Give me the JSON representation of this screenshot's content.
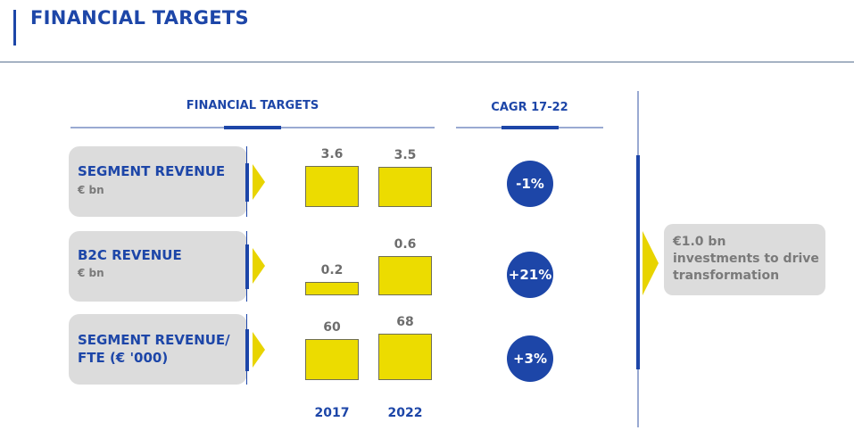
{
  "page": {
    "title": "FINANCIAL TARGETS"
  },
  "sections": {
    "financial_targets_header": "FINANCIAL TARGETS",
    "cagr_header": "CAGR 17-22"
  },
  "colors": {
    "brand_blue": "#1d46a8",
    "bar_yellow": "#ecdc00",
    "box_gray": "#dcdcdc"
  },
  "rows": [
    {
      "label": "SEGMENT REVENUE",
      "sublabel": "€ bn",
      "cagr": "-1%"
    },
    {
      "label": "B2C REVENUE",
      "sublabel": "€ bn",
      "cagr": "+21%"
    },
    {
      "label_line1": "SEGMENT REVENUE/",
      "label_line2": "FTE (€ '000)",
      "cagr": "+3%"
    }
  ],
  "investment": {
    "line1": "€1.0 bn",
    "line2": "investments to drive",
    "line3": "transformation"
  },
  "chart_data": {
    "type": "bar",
    "title": "FINANCIAL TARGETS",
    "categories": [
      "2017",
      "2022"
    ],
    "panels": [
      {
        "name": "SEGMENT REVENUE",
        "unit": "€ bn",
        "values": [
          3.6,
          3.5
        ],
        "labels": [
          "3.6",
          "3.5"
        ],
        "cagr": "-1%"
      },
      {
        "name": "B2C REVENUE",
        "unit": "€ bn",
        "values": [
          0.2,
          0.6
        ],
        "labels": [
          "0.2",
          "0.6"
        ],
        "cagr": "+21%"
      },
      {
        "name": "SEGMENT REVENUE/FTE",
        "unit": "€ '000",
        "values": [
          60,
          68
        ],
        "labels": [
          "60",
          "68"
        ],
        "cagr": "+3%"
      }
    ],
    "xlabel": "",
    "ylabel": "",
    "grid": false
  }
}
